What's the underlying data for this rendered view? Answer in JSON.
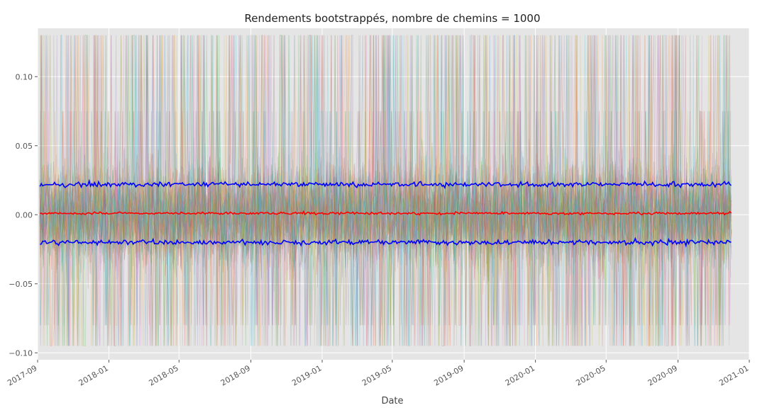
{
  "chart_data": {
    "type": "line",
    "title": "Rendements bootstrappés, nombre de chemins = 1000",
    "xlabel": "Date",
    "ylabel": "",
    "x_range": [
      "2017-09-01",
      "2021-01-01"
    ],
    "data_range": [
      "2017-09-05",
      "2020-12-01"
    ],
    "ylim": [
      -0.105,
      0.135
    ],
    "y_ticks": [
      {
        "value": 0.1,
        "label": "0.10"
      },
      {
        "value": 0.05,
        "label": "0.05"
      },
      {
        "value": 0.0,
        "label": "0.00"
      },
      {
        "value": -0.05,
        "label": "−0.05"
      },
      {
        "value": -0.1,
        "label": "−0.10"
      }
    ],
    "x_ticks": [
      {
        "date": "2017-09-01",
        "label": "2017-09"
      },
      {
        "date": "2018-01-01",
        "label": "2018-01"
      },
      {
        "date": "2018-05-01",
        "label": "2018-05"
      },
      {
        "date": "2018-09-01",
        "label": "2018-09"
      },
      {
        "date": "2019-01-01",
        "label": "2019-01"
      },
      {
        "date": "2019-05-01",
        "label": "2019-05"
      },
      {
        "date": "2019-09-01",
        "label": "2019-09"
      },
      {
        "date": "2020-01-01",
        "label": "2020-01"
      },
      {
        "date": "2020-05-01",
        "label": "2020-05"
      },
      {
        "date": "2020-09-01",
        "label": "2020-09"
      },
      {
        "date": "2021-01-01",
        "label": "2021-01"
      }
    ],
    "grid": true,
    "style": "ggplot",
    "num_paths": 1000,
    "path_return_range": [
      -0.095,
      0.13
    ],
    "series": [
      {
        "role": "upper-band",
        "color": "#0000ff",
        "mean": 0.022,
        "noise": 0.0012
      },
      {
        "role": "mean",
        "color": "#ff0000",
        "mean": 0.001,
        "noise": 0.0006
      },
      {
        "role": "lower-band",
        "color": "#0000ff",
        "mean": -0.02,
        "noise": 0.0012
      }
    ],
    "path_colors": [
      "#1f77b4",
      "#ff7f0e",
      "#2ca02c",
      "#d62728",
      "#9467bd",
      "#8c564b",
      "#e377c2",
      "#7f7f7f",
      "#bcbd22",
      "#17becf"
    ]
  }
}
